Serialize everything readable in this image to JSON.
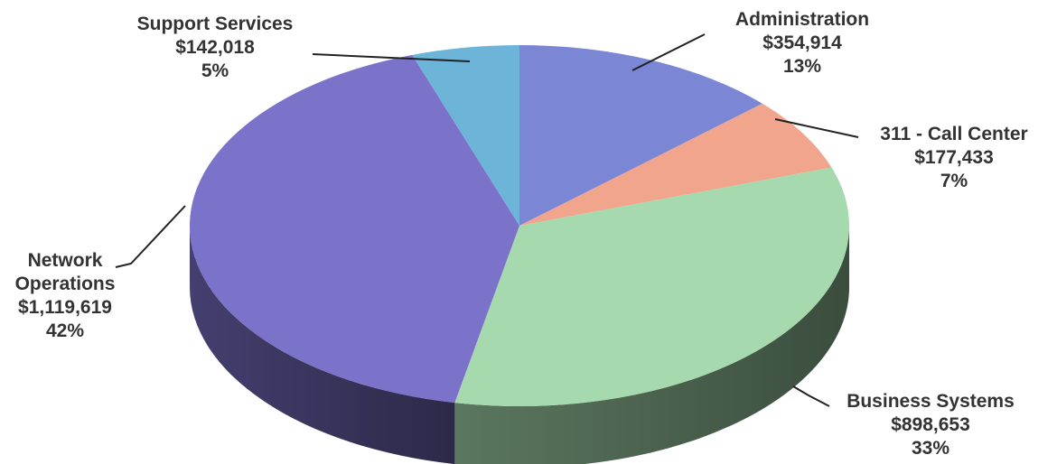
{
  "chart_data": {
    "type": "pie",
    "title": "",
    "slices": [
      {
        "label": "Administration",
        "value": 354914,
        "value_text": "$354,914",
        "percent_text": "13%",
        "color": "#7b86d4"
      },
      {
        "label": "311 - Call Center",
        "value": 177433,
        "value_text": "$177,433",
        "percent_text": "7%",
        "color": "#f0a58c"
      },
      {
        "label": "Business Systems",
        "value": 898653,
        "value_text": "$898,653",
        "percent_text": "33%",
        "color": "#a6d9ad"
      },
      {
        "label": "Network Operations",
        "label_lines": [
          "Network",
          "Operations"
        ],
        "value": 1119619,
        "value_text": "$1,119,619",
        "percent_text": "42%",
        "color": "#7b72c9"
      },
      {
        "label": "Support Services",
        "value": 142018,
        "value_text": "$142,018",
        "percent_text": "5%",
        "color": "#6cb4d8"
      }
    ]
  }
}
